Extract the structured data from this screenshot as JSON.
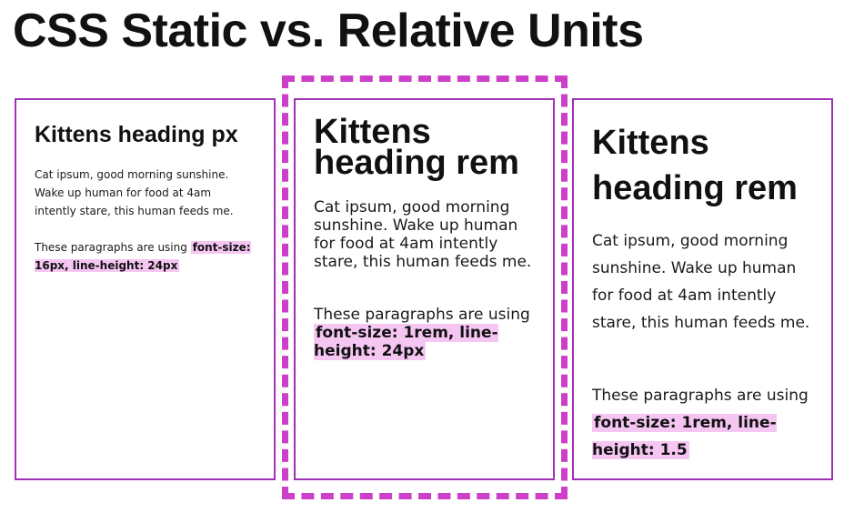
{
  "title": "CSS Static vs. Relative Units",
  "cards": [
    {
      "heading": "Kittens heading px",
      "body": "Cat ipsum, good morning sunshine. Wake up human for food at 4am intently stare, this human feeds me.",
      "note_prefix": "These paragraphs are using",
      "note_code": "font-size: 16px, line-height: 24px"
    },
    {
      "heading": "Kittens heading rem",
      "body": "Cat ipsum, good morning sunshine. Wake up human for food at 4am intently stare, this human feeds me.",
      "note_prefix": "These paragraphs are using",
      "note_code": "font-size: 1rem, line-height: 24px"
    },
    {
      "heading": "Kittens heading rem",
      "body": "Cat ipsum, good morning sunshine. Wake up human for food at 4am intently stare, this human feeds me.",
      "note_prefix": "These paragraphs are using",
      "note_code": "font-size: 1rem, line-height: 1.5"
    }
  ],
  "colors": {
    "card_border": "#a030b4",
    "highlight_dashed_border": "#cc3fc8",
    "code_highlight": "#f6c6f3"
  }
}
